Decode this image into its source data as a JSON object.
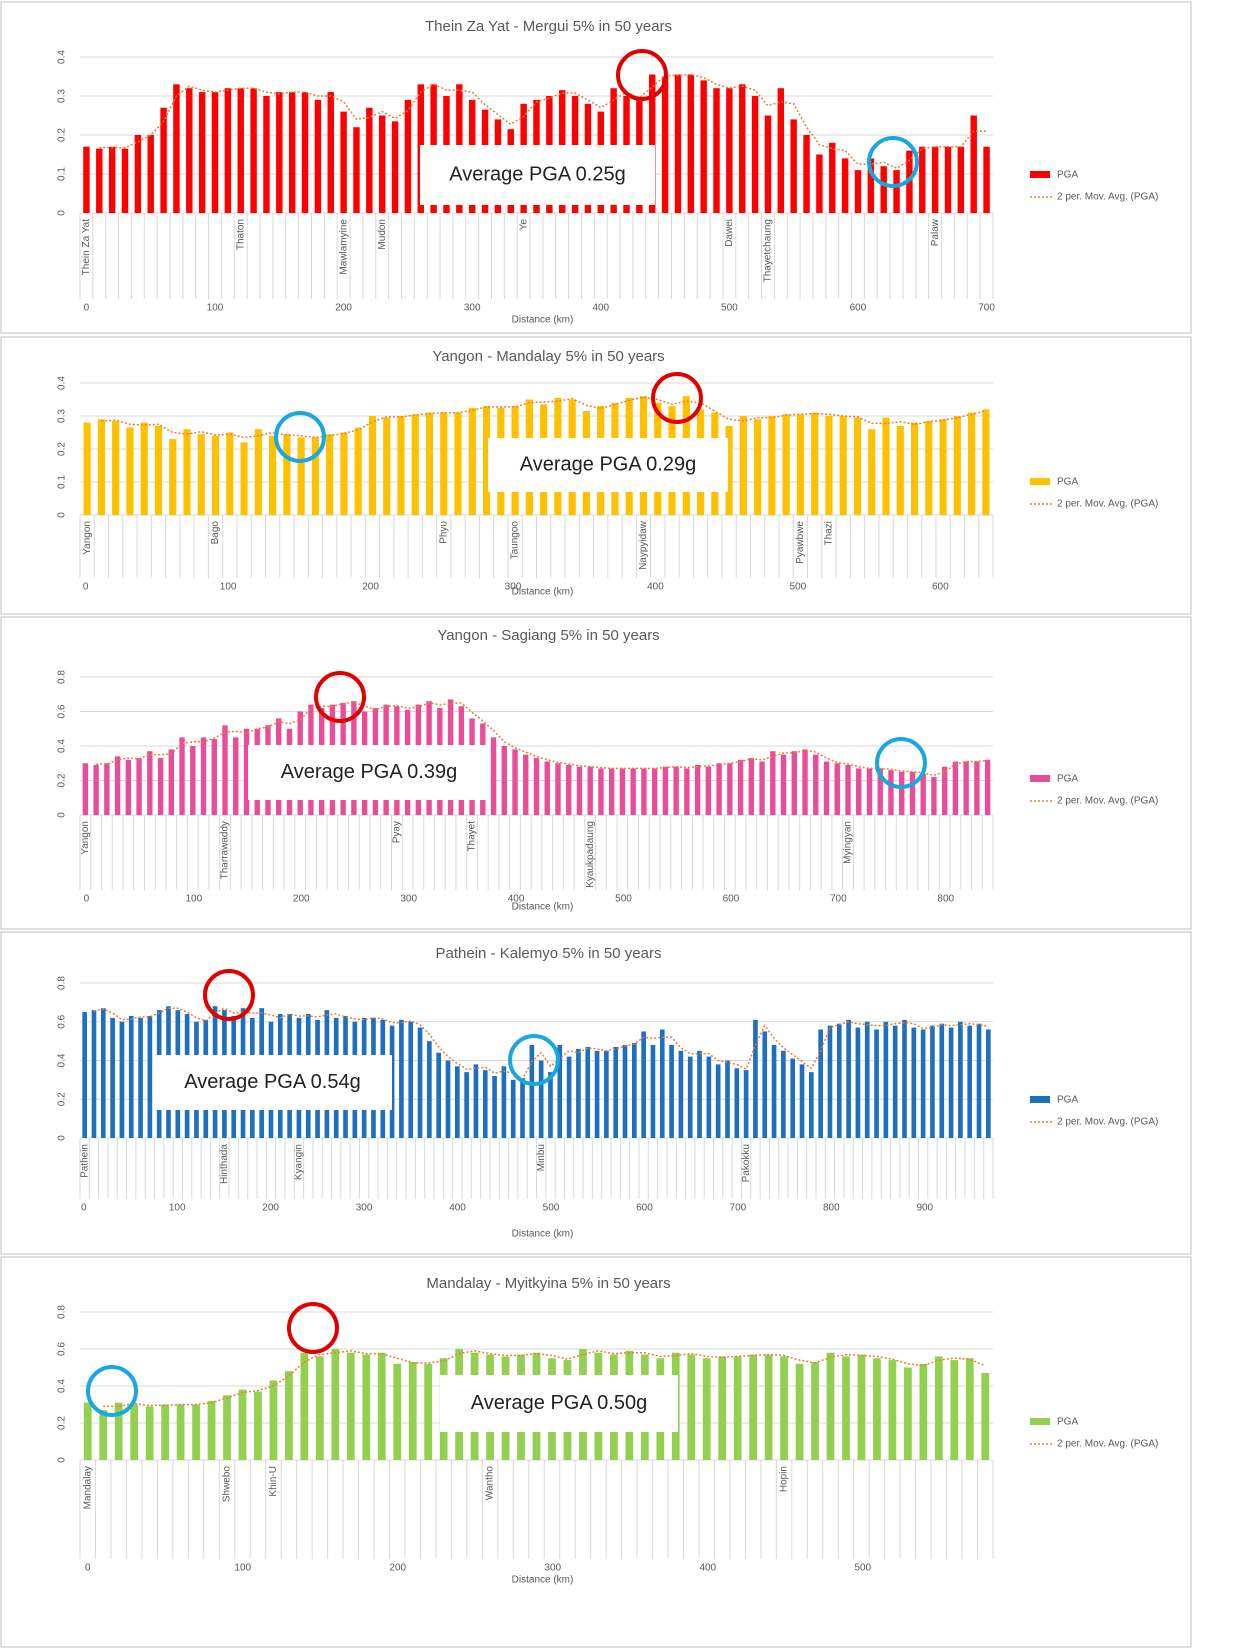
{
  "chart_data": [
    {
      "type": "bar",
      "title": "Thein Za Yat - Mergui 5% in 50 years",
      "categories": [
        "Thein Za Yat",
        null,
        null,
        null,
        null,
        null,
        null,
        null,
        null,
        null,
        null,
        null,
        "Thaton",
        null,
        null,
        null,
        null,
        null,
        null,
        null,
        "Mawlamyine",
        null,
        null,
        "Mudon",
        null,
        null,
        null,
        null,
        null,
        null,
        null,
        null,
        null,
        null,
        "Ye",
        null,
        null,
        null,
        null,
        null,
        null,
        null,
        null,
        null,
        null,
        null,
        null,
        null,
        null,
        null,
        "Dawei",
        null,
        null,
        "Thayetchaung",
        null,
        null,
        null,
        null,
        null,
        null,
        null,
        null,
        null,
        null,
        null,
        null,
        "Palaw",
        null,
        null,
        null,
        null
      ],
      "series": [
        {
          "name": "PGA",
          "color": "#ff0000",
          "values": [
            0.17,
            0.165,
            0.17,
            0.165,
            0.2,
            0.2,
            0.27,
            0.33,
            0.32,
            0.31,
            0.31,
            0.32,
            0.32,
            0.32,
            0.3,
            0.31,
            0.31,
            0.31,
            0.29,
            0.31,
            0.26,
            0.22,
            0.27,
            0.25,
            0.235,
            0.29,
            0.33,
            0.33,
            0.3,
            0.33,
            0.29,
            0.265,
            0.24,
            0.215,
            0.28,
            0.29,
            0.3,
            0.315,
            0.3,
            0.28,
            0.26,
            0.32,
            0.3,
            0.29,
            0.355,
            0.35,
            0.355,
            0.355,
            0.34,
            0.32,
            0.32,
            0.33,
            0.3,
            0.25,
            0.32,
            0.24,
            0.2,
            0.15,
            0.18,
            0.14,
            0.11,
            0.14,
            0.12,
            0.11,
            0.16,
            0.17,
            0.17,
            0.17,
            0.17,
            0.25,
            0.17
          ]
        }
      ],
      "trendline": {
        "name": "2 per. Mov. Avg. (PGA)",
        "period": 2,
        "color": "#ed7d31"
      },
      "annotation": "Average PGA 0.25g",
      "xlabel": "Distance (km)",
      "xlim": [
        -5,
        705
      ],
      "xticks": [
        0,
        100,
        200,
        300,
        400,
        500,
        600,
        700
      ],
      "ylim": [
        0,
        0.4
      ],
      "yticks": [
        0,
        0.1,
        0.2,
        0.3,
        0.4
      ],
      "grid": true
    },
    {
      "type": "bar",
      "title": "Yangon - Mandalay 5% in 50 years",
      "categories": [
        "Yangon",
        null,
        null,
        null,
        null,
        null,
        null,
        null,
        null,
        "Bago",
        null,
        null,
        null,
        null,
        null,
        null,
        null,
        null,
        null,
        null,
        null,
        null,
        null,
        null,
        null,
        "Phyu",
        null,
        null,
        null,
        null,
        "Taungoo",
        null,
        null,
        null,
        null,
        null,
        null,
        null,
        null,
        "Naypyidaw",
        null,
        null,
        null,
        null,
        null,
        null,
        null,
        null,
        null,
        null,
        "Pyawbwe",
        null,
        "Thazi",
        null,
        null,
        null,
        null,
        null,
        null,
        null,
        null,
        null,
        null,
        null
      ],
      "series": [
        {
          "name": "PGA",
          "color": "#ffc000",
          "values": [
            0.28,
            0.29,
            0.285,
            0.265,
            0.28,
            0.27,
            0.23,
            0.26,
            0.245,
            0.24,
            0.25,
            0.22,
            0.26,
            0.24,
            0.245,
            0.235,
            0.235,
            0.245,
            0.25,
            0.265,
            0.3,
            0.295,
            0.3,
            0.305,
            0.31,
            0.31,
            0.31,
            0.325,
            0.33,
            0.325,
            0.33,
            0.35,
            0.335,
            0.355,
            0.35,
            0.315,
            0.33,
            0.34,
            0.355,
            0.36,
            0.34,
            0.33,
            0.36,
            0.32,
            0.31,
            0.27,
            0.3,
            0.29,
            0.3,
            0.305,
            0.305,
            0.31,
            0.3,
            0.3,
            0.295,
            0.26,
            0.295,
            0.27,
            0.28,
            0.285,
            0.29,
            0.3,
            0.31,
            0.32
          ]
        }
      ],
      "trendline": {
        "name": "2 per. Mov. Avg. (PGA)",
        "period": 2,
        "color": "#ed7d31"
      },
      "annotation": "Average PGA 0.29g",
      "xlabel": "Distance (km)",
      "xlim": [
        -4,
        637
      ],
      "xticks": [
        0,
        100,
        200,
        300,
        400,
        500,
        600
      ],
      "ylim": [
        0,
        0.4
      ],
      "yticks": [
        0,
        0.1,
        0.2,
        0.3,
        0.4
      ],
      "grid": true
    },
    {
      "type": "bar",
      "title": "Yangon - Sagiang 5% in 50 years",
      "categories": [
        "Yangon",
        null,
        null,
        null,
        null,
        null,
        null,
        null,
        null,
        null,
        null,
        null,
        null,
        "Tharrawaddy",
        null,
        null,
        null,
        null,
        null,
        null,
        null,
        null,
        null,
        null,
        null,
        null,
        null,
        null,
        null,
        "Pyay",
        null,
        null,
        null,
        null,
        null,
        null,
        "Thayet",
        null,
        null,
        null,
        null,
        null,
        null,
        null,
        null,
        null,
        null,
        "Kyaukpadaung",
        null,
        null,
        null,
        null,
        null,
        null,
        null,
        null,
        null,
        null,
        null,
        null,
        null,
        null,
        null,
        null,
        null,
        null,
        null,
        null,
        null,
        null,
        null,
        "Myingyan",
        null,
        null,
        null,
        null,
        null,
        null,
        null,
        null,
        null,
        null,
        null,
        null,
        null
      ],
      "series": [
        {
          "name": "PGA",
          "color": "#ea4c98",
          "values": [
            0.3,
            0.29,
            0.3,
            0.34,
            0.32,
            0.33,
            0.37,
            0.33,
            0.38,
            0.45,
            0.4,
            0.45,
            0.44,
            0.52,
            0.45,
            0.5,
            0.5,
            0.52,
            0.56,
            0.5,
            0.6,
            0.64,
            0.62,
            0.64,
            0.65,
            0.66,
            0.6,
            0.62,
            0.64,
            0.63,
            0.61,
            0.64,
            0.66,
            0.62,
            0.67,
            0.63,
            0.56,
            0.53,
            0.45,
            0.4,
            0.38,
            0.35,
            0.33,
            0.31,
            0.3,
            0.29,
            0.28,
            0.28,
            0.27,
            0.27,
            0.27,
            0.27,
            0.27,
            0.27,
            0.28,
            0.28,
            0.27,
            0.29,
            0.28,
            0.3,
            0.3,
            0.32,
            0.33,
            0.31,
            0.37,
            0.35,
            0.37,
            0.38,
            0.35,
            0.31,
            0.3,
            0.29,
            0.27,
            0.27,
            0.27,
            0.26,
            0.25,
            0.25,
            0.24,
            0.22,
            0.28,
            0.31,
            0.31,
            0.31,
            0.32
          ]
        }
      ],
      "trendline": {
        "name": "2 per. Mov. Avg. (PGA)",
        "period": 2,
        "color": "#ed7d31"
      },
      "annotation": "Average PGA 0.39g",
      "xlabel": "Distance (km)",
      "xlim": [
        -6,
        844
      ],
      "xticks": [
        0,
        100,
        200,
        300,
        400,
        500,
        600,
        700,
        800
      ],
      "ylim": [
        0,
        0.8
      ],
      "yticks": [
        0,
        0.2,
        0.4,
        0.6,
        0.8
      ],
      "grid": true
    },
    {
      "type": "bar",
      "title": "Pathein - Kalemyo 5% in 50 years",
      "categories": [
        "Pathein",
        null,
        null,
        null,
        null,
        null,
        null,
        null,
        null,
        null,
        null,
        null,
        null,
        null,
        null,
        "Hinthada",
        null,
        null,
        null,
        null,
        null,
        null,
        null,
        "Kyangin",
        null,
        null,
        null,
        null,
        null,
        null,
        null,
        null,
        null,
        null,
        null,
        null,
        null,
        null,
        null,
        null,
        null,
        null,
        null,
        null,
        null,
        null,
        null,
        null,
        null,
        "Minbu",
        null,
        null,
        null,
        null,
        null,
        null,
        null,
        null,
        null,
        null,
        null,
        null,
        null,
        null,
        null,
        null,
        null,
        null,
        null,
        null,
        null,
        "Pakokku",
        null,
        null,
        null,
        null,
        null,
        null,
        null,
        null,
        null,
        null,
        null,
        null,
        null,
        null,
        null,
        null,
        null,
        null,
        null,
        null,
        null,
        null,
        null,
        null,
        null,
        null
      ],
      "series": [
        {
          "name": "PGA",
          "color": "#1f6fbf",
          "values": [
            0.65,
            0.66,
            0.67,
            0.62,
            0.6,
            0.63,
            0.62,
            0.63,
            0.66,
            0.68,
            0.66,
            0.64,
            0.6,
            0.61,
            0.68,
            0.66,
            0.63,
            0.67,
            0.62,
            0.67,
            0.6,
            0.64,
            0.64,
            0.62,
            0.64,
            0.61,
            0.66,
            0.62,
            0.63,
            0.6,
            0.62,
            0.62,
            0.61,
            0.58,
            0.61,
            0.6,
            0.57,
            0.5,
            0.44,
            0.4,
            0.37,
            0.34,
            0.38,
            0.35,
            0.32,
            0.37,
            0.3,
            0.31,
            0.48,
            0.4,
            0.34,
            0.48,
            0.42,
            0.46,
            0.47,
            0.45,
            0.45,
            0.47,
            0.48,
            0.49,
            0.55,
            0.48,
            0.56,
            0.48,
            0.45,
            0.42,
            0.45,
            0.42,
            0.38,
            0.4,
            0.36,
            0.35,
            0.61,
            0.55,
            0.48,
            0.45,
            0.41,
            0.38,
            0.34,
            0.56,
            0.58,
            0.59,
            0.61,
            0.57,
            0.6,
            0.56,
            0.6,
            0.58,
            0.61,
            0.57,
            0.56,
            0.58,
            0.59,
            0.57,
            0.6,
            0.58,
            0.59,
            0.56
          ]
        }
      ],
      "trendline": {
        "name": "2 per. Mov. Avg. (PGA)",
        "period": 2,
        "color": "#ed7d31"
      },
      "annotation": "Average PGA 0.54g",
      "xlabel": "Distance (km)",
      "xlim": [
        -4,
        973
      ],
      "xticks": [
        0,
        100,
        200,
        300,
        400,
        500,
        600,
        700,
        800,
        900
      ],
      "ylim": [
        0,
        0.8
      ],
      "yticks": [
        0,
        0.2,
        0.4,
        0.6,
        0.8
      ],
      "grid": true
    },
    {
      "type": "bar",
      "title": "Mandalay - Myitkyina 5% in 50 years",
      "categories": [
        "Mandalay",
        null,
        null,
        null,
        null,
        null,
        null,
        null,
        null,
        "Shwebo",
        null,
        null,
        "Khin-U",
        null,
        null,
        null,
        null,
        null,
        null,
        null,
        null,
        null,
        null,
        null,
        null,
        null,
        "Wantho",
        null,
        null,
        null,
        null,
        null,
        null,
        null,
        null,
        null,
        null,
        null,
        null,
        null,
        null,
        null,
        null,
        null,
        null,
        "Hopin",
        null,
        null,
        null,
        null,
        null,
        null,
        null,
        null,
        null,
        null,
        null,
        null,
        null
      ],
      "series": [
        {
          "name": "PGA",
          "color": "#92d050",
          "values": [
            0.31,
            0.27,
            0.31,
            0.3,
            0.29,
            0.3,
            0.3,
            0.3,
            0.32,
            0.35,
            0.38,
            0.37,
            0.43,
            0.48,
            0.58,
            0.56,
            0.6,
            0.58,
            0.57,
            0.58,
            0.52,
            0.53,
            0.52,
            0.55,
            0.6,
            0.58,
            0.57,
            0.56,
            0.57,
            0.58,
            0.55,
            0.54,
            0.6,
            0.58,
            0.57,
            0.59,
            0.57,
            0.55,
            0.58,
            0.57,
            0.55,
            0.56,
            0.56,
            0.57,
            0.57,
            0.56,
            0.52,
            0.53,
            0.58,
            0.56,
            0.57,
            0.55,
            0.54,
            0.5,
            0.52,
            0.56,
            0.54,
            0.55,
            0.47
          ]
        }
      ],
      "trendline": {
        "name": "2 per. Mov. Avg. (PGA)",
        "period": 2,
        "color": "#ed7d31"
      },
      "annotation": "Average PGA 0.50g",
      "xlabel": "Distance (km)",
      "xlim": [
        -5,
        584
      ],
      "xticks": [
        0,
        100,
        200,
        300,
        400,
        500
      ],
      "ylim": [
        0,
        0.8
      ],
      "yticks": [
        0,
        0.2,
        0.4,
        0.6,
        0.8
      ],
      "grid": true
    }
  ]
}
